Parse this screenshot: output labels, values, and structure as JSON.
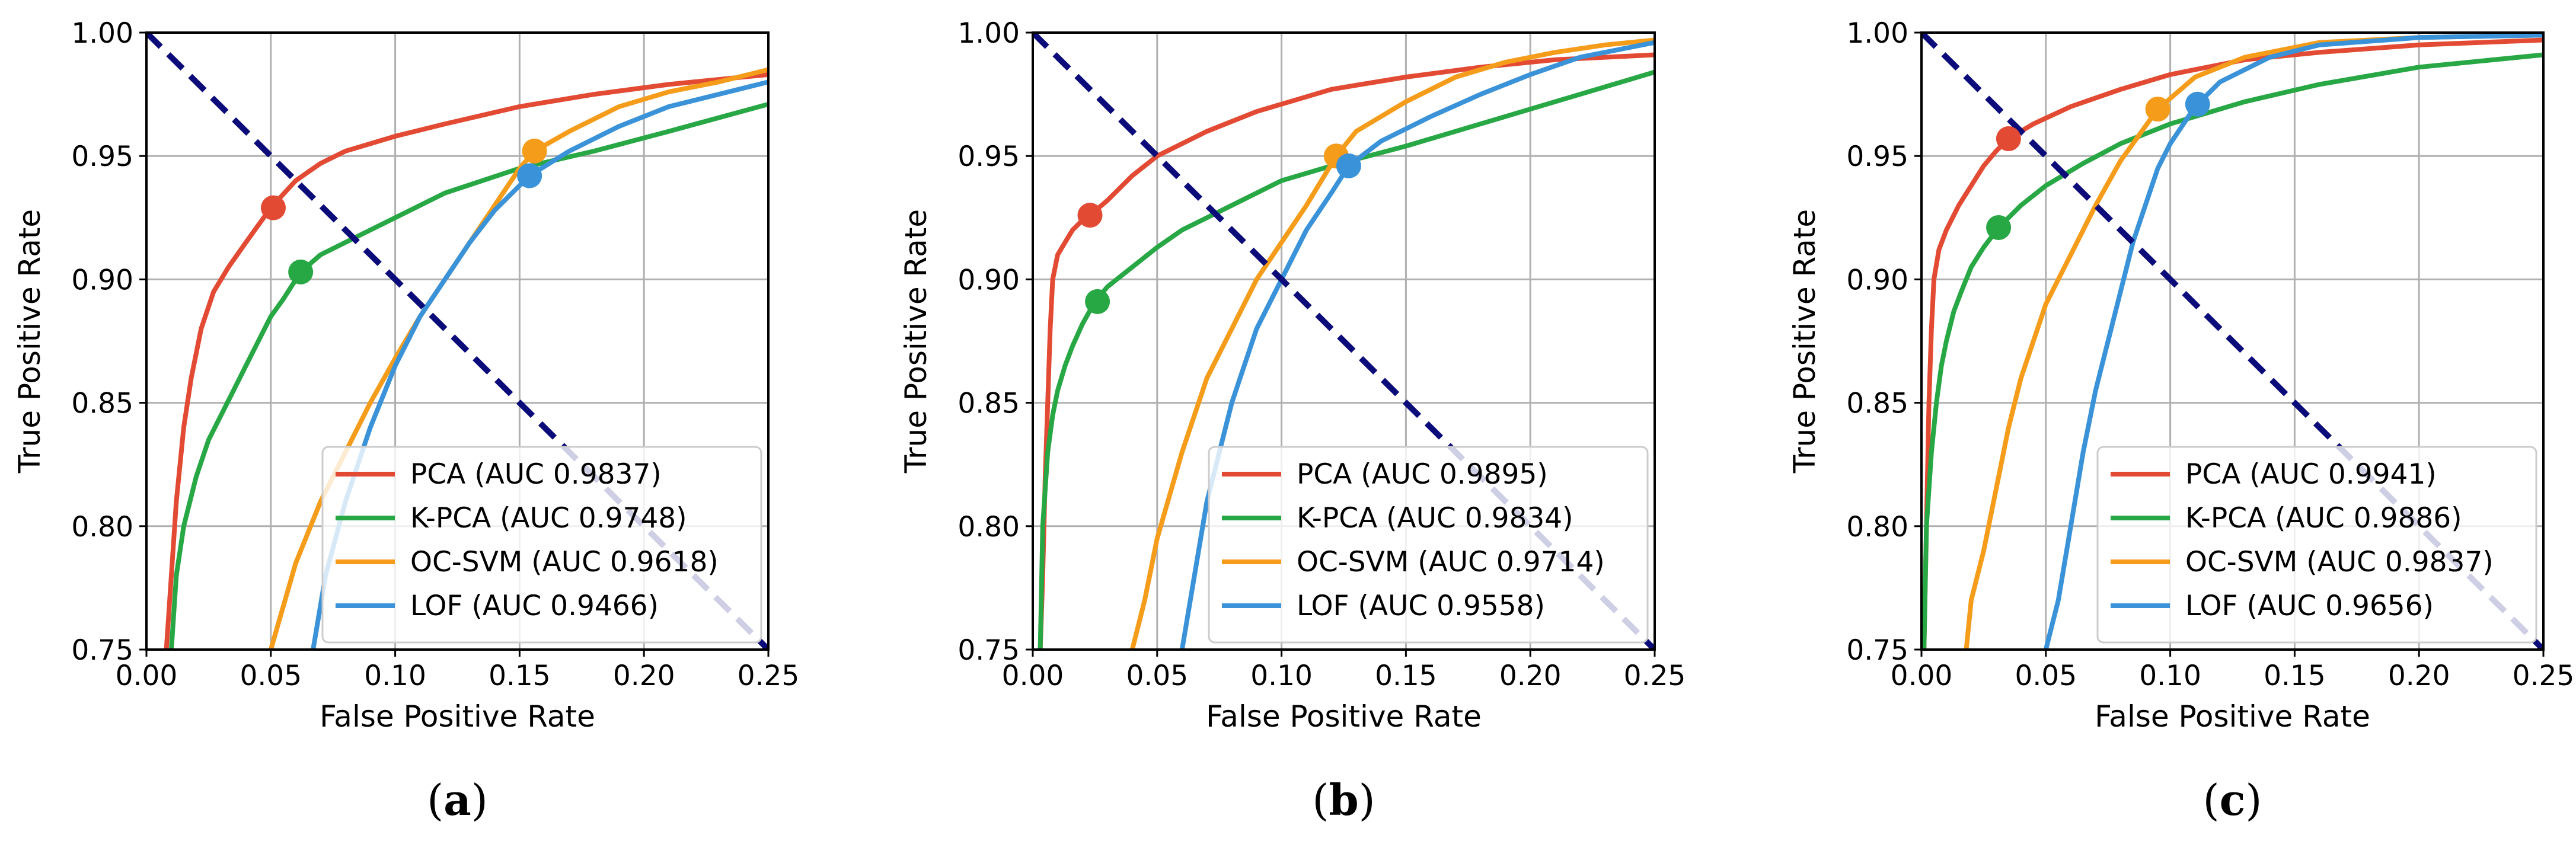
{
  "colors": {
    "PCA": "#e34a33",
    "K-PCA": "#28a745",
    "OC-SVM": "#f59c1a",
    "LOF": "#3a92d8",
    "diagonal": "#0b0b7a",
    "grid": "#b0b0b0"
  },
  "chart_data": [
    {
      "type": "line",
      "panel": "a",
      "caption": {
        "open": "(",
        "letter": "a",
        "close": ")"
      },
      "xlabel": "False Positive Rate",
      "ylabel": "True Positive Rate",
      "xlim": [
        0,
        0.25
      ],
      "ylim": [
        0.75,
        1.0
      ],
      "xticks": [
        "0.00",
        "0.05",
        "0.10",
        "0.15",
        "0.20",
        "0.25"
      ],
      "yticks": [
        "0.75",
        "0.80",
        "0.85",
        "0.90",
        "0.95",
        "1.00"
      ],
      "grid": true,
      "legend_position": "lower-right",
      "diagonal": {
        "x": [
          0.0,
          0.25
        ],
        "y": [
          1.0,
          0.75
        ]
      },
      "series": [
        {
          "name": "PCA",
          "legend": "PCA (AUC 0.9837)",
          "x": [
            0.008,
            0.01,
            0.012,
            0.015,
            0.018,
            0.022,
            0.027,
            0.033,
            0.04,
            0.05,
            0.06,
            0.07,
            0.08,
            0.1,
            0.12,
            0.15,
            0.18,
            0.21,
            0.25
          ],
          "y": [
            0.75,
            0.78,
            0.81,
            0.84,
            0.86,
            0.88,
            0.895,
            0.905,
            0.915,
            0.929,
            0.94,
            0.947,
            0.952,
            0.958,
            0.963,
            0.97,
            0.975,
            0.979,
            0.983
          ],
          "marker": [
            0.051,
            0.929
          ]
        },
        {
          "name": "K-PCA",
          "legend": "K-PCA (AUC 0.9748)",
          "x": [
            0.01,
            0.012,
            0.015,
            0.02,
            0.025,
            0.03,
            0.035,
            0.04,
            0.045,
            0.05,
            0.055,
            0.062,
            0.07,
            0.08,
            0.1,
            0.12,
            0.15,
            0.18,
            0.21,
            0.25
          ],
          "y": [
            0.75,
            0.78,
            0.8,
            0.82,
            0.835,
            0.845,
            0.855,
            0.865,
            0.875,
            0.885,
            0.892,
            0.903,
            0.91,
            0.915,
            0.925,
            0.935,
            0.945,
            0.952,
            0.96,
            0.971
          ],
          "marker": [
            0.062,
            0.903
          ]
        },
        {
          "name": "OC-SVM",
          "legend": "OC-SVM (AUC 0.9618)",
          "x": [
            0.05,
            0.06,
            0.07,
            0.08,
            0.09,
            0.1,
            0.11,
            0.12,
            0.13,
            0.14,
            0.15,
            0.156,
            0.17,
            0.19,
            0.21,
            0.23,
            0.25
          ],
          "y": [
            0.75,
            0.785,
            0.81,
            0.83,
            0.85,
            0.868,
            0.885,
            0.9,
            0.915,
            0.93,
            0.945,
            0.952,
            0.96,
            0.97,
            0.976,
            0.98,
            0.985
          ],
          "marker": [
            0.156,
            0.952
          ]
        },
        {
          "name": "LOF",
          "legend": "LOF (AUC 0.9466)",
          "x": [
            0.067,
            0.072,
            0.08,
            0.09,
            0.1,
            0.11,
            0.12,
            0.13,
            0.14,
            0.154,
            0.17,
            0.19,
            0.21,
            0.23,
            0.25
          ],
          "y": [
            0.75,
            0.78,
            0.81,
            0.84,
            0.865,
            0.885,
            0.9,
            0.915,
            0.928,
            0.942,
            0.952,
            0.962,
            0.97,
            0.975,
            0.98
          ],
          "marker": [
            0.154,
            0.942
          ]
        }
      ]
    },
    {
      "type": "line",
      "panel": "b",
      "caption": {
        "open": "(",
        "letter": "b",
        "close": ")"
      },
      "xlabel": "False Positive Rate",
      "ylabel": "True Positive Rate",
      "xlim": [
        0,
        0.25
      ],
      "ylim": [
        0.75,
        1.0
      ],
      "xticks": [
        "0.00",
        "0.05",
        "0.10",
        "0.15",
        "0.20",
        "0.25"
      ],
      "yticks": [
        "0.75",
        "0.80",
        "0.85",
        "0.90",
        "0.95",
        "1.00"
      ],
      "grid": true,
      "legend_position": "lower-right",
      "diagonal": {
        "x": [
          0.0,
          0.25
        ],
        "y": [
          1.0,
          0.75
        ]
      },
      "series": [
        {
          "name": "PCA",
          "legend": "PCA (AUC 0.9895)",
          "x": [
            0.003,
            0.004,
            0.005,
            0.006,
            0.007,
            0.008,
            0.01,
            0.013,
            0.016,
            0.02,
            0.023,
            0.03,
            0.04,
            0.05,
            0.07,
            0.09,
            0.12,
            0.15,
            0.18,
            0.21,
            0.25
          ],
          "y": [
            0.75,
            0.78,
            0.82,
            0.85,
            0.88,
            0.9,
            0.91,
            0.915,
            0.92,
            0.924,
            0.926,
            0.932,
            0.942,
            0.95,
            0.96,
            0.968,
            0.977,
            0.982,
            0.986,
            0.989,
            0.991
          ],
          "marker": [
            0.023,
            0.926
          ]
        },
        {
          "name": "K-PCA",
          "legend": "K-PCA (AUC 0.9834)",
          "x": [
            0.003,
            0.004,
            0.006,
            0.008,
            0.01,
            0.013,
            0.016,
            0.02,
            0.025,
            0.03,
            0.04,
            0.05,
            0.06,
            0.08,
            0.1,
            0.12,
            0.15,
            0.18,
            0.21,
            0.25
          ],
          "y": [
            0.75,
            0.8,
            0.83,
            0.845,
            0.855,
            0.865,
            0.873,
            0.882,
            0.891,
            0.897,
            0.905,
            0.913,
            0.92,
            0.93,
            0.94,
            0.946,
            0.954,
            0.963,
            0.972,
            0.984
          ],
          "marker": [
            0.026,
            0.891
          ]
        },
        {
          "name": "OC-SVM",
          "legend": "OC-SVM (AUC 0.9714)",
          "x": [
            0.04,
            0.045,
            0.05,
            0.06,
            0.07,
            0.08,
            0.09,
            0.1,
            0.11,
            0.122,
            0.13,
            0.15,
            0.17,
            0.19,
            0.21,
            0.23,
            0.25
          ],
          "y": [
            0.75,
            0.77,
            0.795,
            0.83,
            0.86,
            0.88,
            0.9,
            0.915,
            0.93,
            0.95,
            0.96,
            0.972,
            0.982,
            0.988,
            0.992,
            0.995,
            0.997
          ],
          "marker": [
            0.122,
            0.95
          ]
        },
        {
          "name": "LOF",
          "legend": "LOF (AUC 0.9558)",
          "x": [
            0.06,
            0.065,
            0.07,
            0.08,
            0.09,
            0.1,
            0.11,
            0.12,
            0.127,
            0.14,
            0.16,
            0.18,
            0.2,
            0.22,
            0.25
          ],
          "y": [
            0.75,
            0.78,
            0.81,
            0.85,
            0.88,
            0.9,
            0.92,
            0.935,
            0.946,
            0.956,
            0.966,
            0.975,
            0.983,
            0.99,
            0.996
          ],
          "marker": [
            0.127,
            0.946
          ]
        }
      ]
    },
    {
      "type": "line",
      "panel": "c",
      "caption": {
        "open": "(",
        "letter": "c",
        "close": ")"
      },
      "xlabel": "False Positive Rate",
      "ylabel": "True Positive Rate",
      "xlim": [
        0,
        0.25
      ],
      "ylim": [
        0.75,
        1.0
      ],
      "xticks": [
        "0.00",
        "0.05",
        "0.10",
        "0.15",
        "0.20",
        "0.25"
      ],
      "yticks": [
        "0.75",
        "0.80",
        "0.85",
        "0.90",
        "0.95",
        "1.00"
      ],
      "grid": true,
      "legend_position": "lower-right",
      "diagonal": {
        "x": [
          0.0,
          0.25
        ],
        "y": [
          1.0,
          0.75
        ]
      },
      "series": [
        {
          "name": "PCA",
          "legend": "PCA (AUC 0.9941)",
          "x": [
            0.001,
            0.002,
            0.003,
            0.004,
            0.005,
            0.007,
            0.01,
            0.015,
            0.02,
            0.025,
            0.03,
            0.035,
            0.045,
            0.06,
            0.08,
            0.1,
            0.13,
            0.16,
            0.2,
            0.25
          ],
          "y": [
            0.75,
            0.8,
            0.85,
            0.88,
            0.9,
            0.912,
            0.92,
            0.93,
            0.938,
            0.946,
            0.952,
            0.957,
            0.963,
            0.97,
            0.977,
            0.983,
            0.989,
            0.992,
            0.995,
            0.997
          ],
          "marker": [
            0.035,
            0.957
          ]
        },
        {
          "name": "K-PCA",
          "legend": "K-PCA (AUC 0.9886)",
          "x": [
            0.001,
            0.002,
            0.004,
            0.006,
            0.008,
            0.01,
            0.013,
            0.016,
            0.02,
            0.025,
            0.031,
            0.04,
            0.05,
            0.065,
            0.08,
            0.1,
            0.13,
            0.16,
            0.2,
            0.25
          ],
          "y": [
            0.75,
            0.8,
            0.83,
            0.85,
            0.865,
            0.875,
            0.887,
            0.895,
            0.905,
            0.913,
            0.921,
            0.93,
            0.938,
            0.947,
            0.955,
            0.963,
            0.972,
            0.979,
            0.986,
            0.991
          ],
          "marker": [
            0.031,
            0.921
          ]
        },
        {
          "name": "OC-SVM",
          "legend": "OC-SVM (AUC 0.9837)",
          "x": [
            0.018,
            0.02,
            0.025,
            0.03,
            0.035,
            0.04,
            0.045,
            0.05,
            0.06,
            0.07,
            0.08,
            0.09,
            0.095,
            0.11,
            0.13,
            0.16,
            0.2,
            0.25
          ],
          "y": [
            0.75,
            0.77,
            0.79,
            0.815,
            0.84,
            0.86,
            0.875,
            0.89,
            0.91,
            0.93,
            0.948,
            0.962,
            0.969,
            0.982,
            0.99,
            0.996,
            0.998,
            0.999
          ],
          "marker": [
            0.095,
            0.969
          ]
        },
        {
          "name": "LOF",
          "legend": "LOF (AUC 0.9656)",
          "x": [
            0.05,
            0.055,
            0.06,
            0.065,
            0.07,
            0.075,
            0.08,
            0.085,
            0.09,
            0.095,
            0.1,
            0.11,
            0.12,
            0.14,
            0.16,
            0.2,
            0.25
          ],
          "y": [
            0.75,
            0.77,
            0.8,
            0.83,
            0.855,
            0.875,
            0.895,
            0.915,
            0.93,
            0.945,
            0.955,
            0.97,
            0.98,
            0.99,
            0.995,
            0.998,
            0.999
          ],
          "marker": [
            0.111,
            0.971
          ]
        }
      ]
    }
  ]
}
